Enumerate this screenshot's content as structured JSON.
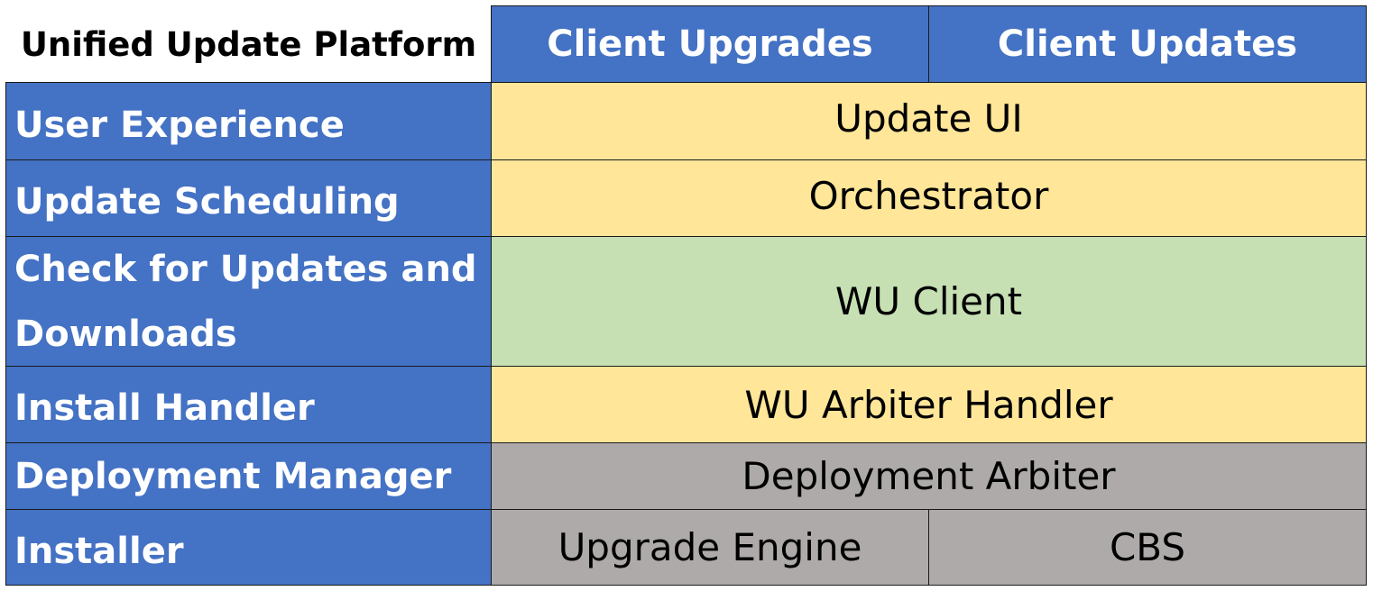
{
  "title": "Unified Update Platform",
  "columns": [
    "Client Upgrades",
    "Client Updates"
  ],
  "colors": {
    "header": "#4472C4",
    "yellow": "#FFE699",
    "green": "#C6E0B4",
    "gray": "#AEAAAA"
  },
  "rows": [
    {
      "label": "User Experience",
      "component": "Update UI"
    },
    {
      "label": "Update Scheduling",
      "component": "Orchestrator"
    },
    {
      "label": "Check for Updates and Downloads",
      "component": "WU Client"
    },
    {
      "label": "Install Handler",
      "component": "WU Arbiter Handler"
    },
    {
      "label": "Deployment Manager",
      "component": "Deployment Arbiter"
    },
    {
      "label": "Installer",
      "components": [
        "Upgrade Engine",
        "CBS"
      ]
    }
  ]
}
